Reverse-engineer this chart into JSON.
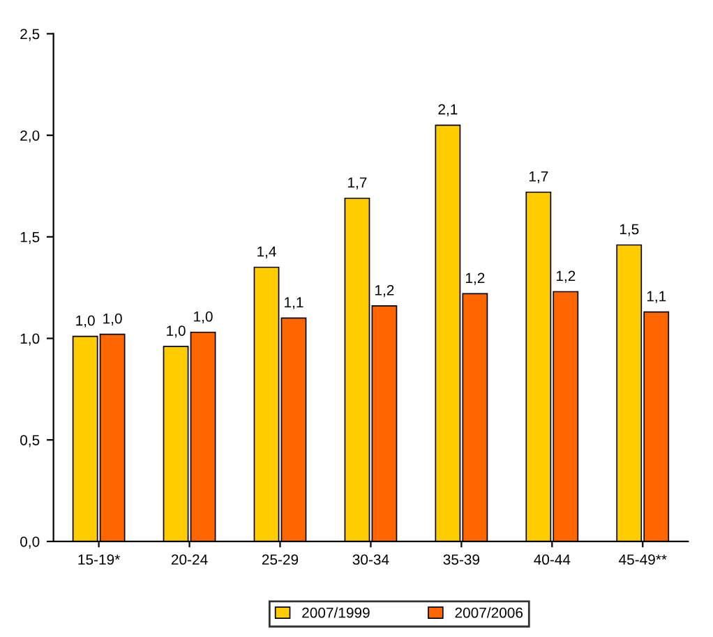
{
  "chart_data": {
    "type": "bar",
    "categories": [
      "15-19*",
      "20-24",
      "25-29",
      "30-34",
      "35-39",
      "40-44",
      "45-49**"
    ],
    "series": [
      {
        "name": "2007/1999",
        "color": "#ffcc00",
        "values": [
          1.01,
          0.96,
          1.35,
          1.69,
          2.05,
          1.72,
          1.46
        ],
        "value_labels": [
          "1,0",
          "1,0",
          "1,4",
          "1,7",
          "2,1",
          "1,7",
          "1,5"
        ]
      },
      {
        "name": "2007/2006",
        "color": "#ff6600",
        "values": [
          1.02,
          1.03,
          1.1,
          1.16,
          1.22,
          1.23,
          1.13
        ],
        "value_labels": [
          "1,0",
          "1,0",
          "1,1",
          "1,2",
          "1,2",
          "1,2",
          "1,1"
        ]
      }
    ],
    "ylim": [
      0,
      2.5
    ],
    "yticks": [
      {
        "value": 0,
        "label": "0,0"
      },
      {
        "value": 0.5,
        "label": "0,5"
      },
      {
        "value": 1,
        "label": "1,0"
      },
      {
        "value": 1.5,
        "label": "1,5"
      },
      {
        "value": 2,
        "label": "2,0"
      },
      {
        "value": 2.5,
        "label": "2,5"
      }
    ],
    "grid": false,
    "legend": "bottom"
  }
}
